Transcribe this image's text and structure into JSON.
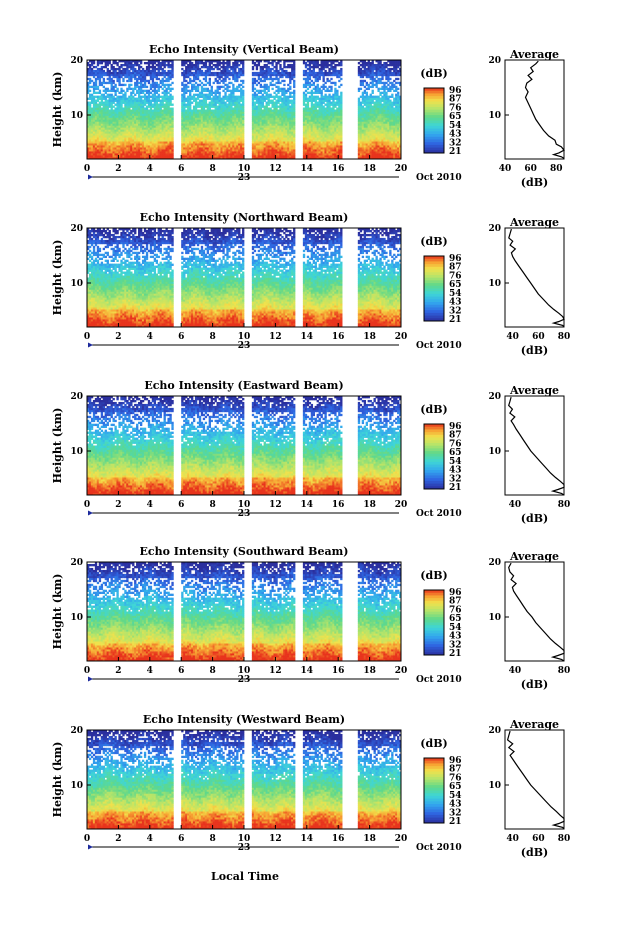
{
  "figure": {
    "xlabel": "Local Time",
    "date_label": "Oct 2010",
    "day_label": "23"
  },
  "chart_data": [
    {
      "type": "heatmap",
      "title": "Echo Intensity (Vertical Beam)",
      "ylabel": "Height (km)",
      "xlabel": "Local Time",
      "x_ticks": [
        "0",
        "2",
        "4",
        "6",
        "8",
        "10",
        "12",
        "14",
        "16",
        "18",
        "20"
      ],
      "y_ticks": [
        "10",
        "20"
      ],
      "xlim": [
        0,
        20
      ],
      "ylim": [
        2,
        20
      ],
      "colorbar": {
        "label": "(dB)",
        "ticks": [
          "96",
          "87",
          "76",
          "65",
          "54",
          "43",
          "32",
          "21"
        ],
        "range": [
          21,
          96
        ]
      },
      "data_gaps_hours": [
        [
          5.5,
          6.0
        ],
        [
          10.0,
          10.5
        ],
        [
          13.2,
          13.7
        ],
        [
          16.2,
          17.3
        ]
      ],
      "profile": {
        "title": "Average",
        "xlabel": "(dB)",
        "xlim": [
          40,
          86
        ],
        "x_ticks": [
          "40",
          "60",
          "80"
        ],
        "ylim": [
          2,
          20
        ],
        "points": [
          [
            66,
            19.8
          ],
          [
            64,
            19.3
          ],
          [
            60,
            18.6
          ],
          [
            62,
            17.9
          ],
          [
            58,
            17.2
          ],
          [
            61,
            16.5
          ],
          [
            57,
            15.8
          ],
          [
            56,
            15.0
          ],
          [
            58,
            14.2
          ],
          [
            56,
            13.2
          ],
          [
            58,
            12.2
          ],
          [
            60,
            11.2
          ],
          [
            62,
            10.2
          ],
          [
            64,
            9.2
          ],
          [
            67,
            8.2
          ],
          [
            70,
            7.2
          ],
          [
            74,
            6.2
          ],
          [
            79,
            5.4
          ],
          [
            80,
            4.7
          ],
          [
            84,
            4.2
          ],
          [
            86,
            3.6
          ],
          [
            82,
            3.1
          ],
          [
            78,
            2.8
          ],
          [
            84,
            2.4
          ],
          [
            86,
            2.1
          ]
        ]
      }
    },
    {
      "type": "heatmap",
      "title": "Echo Intensity (Northward Beam)",
      "ylabel": "Height (km)",
      "xlabel": "Local Time",
      "x_ticks": [
        "0",
        "2",
        "4",
        "6",
        "8",
        "10",
        "12",
        "14",
        "16",
        "18",
        "20"
      ],
      "y_ticks": [
        "10",
        "20"
      ],
      "xlim": [
        0,
        20
      ],
      "ylim": [
        2,
        20
      ],
      "colorbar": {
        "label": "(dB)",
        "ticks": [
          "96",
          "87",
          "76",
          "65",
          "54",
          "43",
          "32",
          "21"
        ],
        "range": [
          21,
          96
        ]
      },
      "data_gaps_hours": [
        [
          5.5,
          6.0
        ],
        [
          10.0,
          10.5
        ],
        [
          13.2,
          13.7
        ],
        [
          16.2,
          17.3
        ]
      ],
      "profile": {
        "title": "Average",
        "xlabel": "(dB)",
        "xlim": [
          34,
          80
        ],
        "x_ticks": [
          "40",
          "60",
          "80"
        ],
        "ylim": [
          2,
          20
        ],
        "points": [
          [
            39,
            19.8
          ],
          [
            38,
            19.0
          ],
          [
            37,
            18.2
          ],
          [
            40,
            17.6
          ],
          [
            38,
            16.9
          ],
          [
            42,
            16.2
          ],
          [
            39,
            15.5
          ],
          [
            40,
            14.8
          ],
          [
            42,
            14.0
          ],
          [
            45,
            13.0
          ],
          [
            48,
            12.0
          ],
          [
            51,
            11.0
          ],
          [
            54,
            10.0
          ],
          [
            57,
            9.0
          ],
          [
            60,
            8.0
          ],
          [
            64,
            7.0
          ],
          [
            68,
            6.0
          ],
          [
            72,
            5.2
          ],
          [
            76,
            4.5
          ],
          [
            79,
            3.9
          ],
          [
            80,
            3.4
          ],
          [
            76,
            3.0
          ],
          [
            72,
            2.7
          ],
          [
            79,
            2.3
          ],
          [
            80,
            2.0
          ]
        ]
      }
    },
    {
      "type": "heatmap",
      "title": "Echo Intensity (Eastward Beam)",
      "ylabel": "Height (km)",
      "xlabel": "Local Time",
      "x_ticks": [
        "0",
        "2",
        "4",
        "6",
        "8",
        "10",
        "12",
        "14",
        "16",
        "18",
        "20"
      ],
      "y_ticks": [
        "10",
        "20"
      ],
      "xlim": [
        0,
        20
      ],
      "ylim": [
        2,
        20
      ],
      "colorbar": {
        "label": "(dB)",
        "ticks": [
          "96",
          "87",
          "76",
          "65",
          "54",
          "43",
          "32",
          "21"
        ],
        "range": [
          21,
          96
        ]
      },
      "data_gaps_hours": [
        [
          5.5,
          6.0
        ],
        [
          10.0,
          10.5
        ],
        [
          13.2,
          13.7
        ],
        [
          16.2,
          17.3
        ]
      ],
      "profile": {
        "title": "Average",
        "xlabel": "(dB)",
        "xlim": [
          32,
          80
        ],
        "x_ticks": [
          "40",
          "80"
        ],
        "ylim": [
          2,
          20
        ],
        "points": [
          [
            37,
            19.8
          ],
          [
            36,
            19.0
          ],
          [
            35,
            18.3
          ],
          [
            38,
            17.6
          ],
          [
            36,
            16.9
          ],
          [
            40,
            16.2
          ],
          [
            37,
            15.5
          ],
          [
            39,
            14.8
          ],
          [
            41,
            14.0
          ],
          [
            44,
            13.0
          ],
          [
            47,
            12.0
          ],
          [
            50,
            11.0
          ],
          [
            53,
            10.0
          ],
          [
            57,
            9.0
          ],
          [
            61,
            8.0
          ],
          [
            65,
            7.0
          ],
          [
            69,
            6.0
          ],
          [
            73,
            5.2
          ],
          [
            77,
            4.5
          ],
          [
            80,
            3.9
          ],
          [
            80,
            3.4
          ],
          [
            75,
            3.0
          ],
          [
            71,
            2.7
          ],
          [
            78,
            2.3
          ],
          [
            80,
            2.0
          ]
        ]
      }
    },
    {
      "type": "heatmap",
      "title": "Echo Intensity (Southward Beam)",
      "ylabel": "Height (km)",
      "xlabel": "Local Time",
      "x_ticks": [
        "0",
        "2",
        "4",
        "6",
        "8",
        "10",
        "12",
        "14",
        "16",
        "18",
        "20"
      ],
      "y_ticks": [
        "10",
        "20"
      ],
      "xlim": [
        0,
        20
      ],
      "ylim": [
        2,
        20
      ],
      "colorbar": {
        "label": "(dB)",
        "ticks": [
          "96",
          "87",
          "76",
          "65",
          "54",
          "43",
          "32",
          "21"
        ],
        "range": [
          21,
          96
        ]
      },
      "data_gaps_hours": [
        [
          5.5,
          6.0
        ],
        [
          10.0,
          10.5
        ],
        [
          13.2,
          13.7
        ],
        [
          16.2,
          17.3
        ]
      ],
      "profile": {
        "title": "Average",
        "xlabel": "(dB)",
        "xlim": [
          32,
          80
        ],
        "x_ticks": [
          "40",
          "80"
        ],
        "ylim": [
          2,
          20
        ],
        "points": [
          [
            37,
            19.8
          ],
          [
            35,
            19.0
          ],
          [
            36,
            18.2
          ],
          [
            39,
            17.5
          ],
          [
            37,
            16.8
          ],
          [
            41,
            16.1
          ],
          [
            38,
            15.4
          ],
          [
            39,
            14.7
          ],
          [
            41,
            14.0
          ],
          [
            44,
            13.0
          ],
          [
            47,
            12.0
          ],
          [
            50,
            11.0
          ],
          [
            54,
            10.0
          ],
          [
            57,
            9.0
          ],
          [
            61,
            8.0
          ],
          [
            65,
            7.0
          ],
          [
            69,
            6.0
          ],
          [
            73,
            5.2
          ],
          [
            77,
            4.5
          ],
          [
            80,
            3.9
          ],
          [
            80,
            3.4
          ],
          [
            75,
            3.0
          ],
          [
            71,
            2.7
          ],
          [
            78,
            2.3
          ],
          [
            80,
            2.0
          ]
        ]
      }
    },
    {
      "type": "heatmap",
      "title": "Echo Intensity (Westward Beam)",
      "ylabel": "Height (km)",
      "xlabel": "Local Time",
      "x_ticks": [
        "0",
        "2",
        "4",
        "6",
        "8",
        "10",
        "12",
        "14",
        "16",
        "18",
        "20"
      ],
      "y_ticks": [
        "10",
        "20"
      ],
      "xlim": [
        0,
        20
      ],
      "ylim": [
        2,
        20
      ],
      "colorbar": {
        "label": "(dB)",
        "ticks": [
          "96",
          "87",
          "76",
          "65",
          "54",
          "43",
          "32",
          "21"
        ],
        "range": [
          21,
          96
        ]
      },
      "data_gaps_hours": [
        [
          5.5,
          6.0
        ],
        [
          10.0,
          10.5
        ],
        [
          13.2,
          13.7
        ],
        [
          16.2,
          17.3
        ]
      ],
      "profile": {
        "title": "Average",
        "xlabel": "(dB)",
        "xlim": [
          34,
          80
        ],
        "x_ticks": [
          "40",
          "60",
          "80"
        ],
        "ylim": [
          2,
          20
        ],
        "points": [
          [
            38,
            19.8
          ],
          [
            37,
            19.0
          ],
          [
            36,
            18.2
          ],
          [
            40,
            17.5
          ],
          [
            37,
            16.8
          ],
          [
            41,
            16.1
          ],
          [
            38,
            15.4
          ],
          [
            40,
            14.7
          ],
          [
            42,
            14.0
          ],
          [
            45,
            13.0
          ],
          [
            48,
            12.0
          ],
          [
            51,
            11.0
          ],
          [
            54,
            10.0
          ],
          [
            58,
            9.0
          ],
          [
            62,
            8.0
          ],
          [
            66,
            7.0
          ],
          [
            70,
            6.0
          ],
          [
            74,
            5.2
          ],
          [
            77,
            4.5
          ],
          [
            80,
            3.9
          ],
          [
            80,
            3.4
          ],
          [
            76,
            3.0
          ],
          [
            72,
            2.7
          ],
          [
            79,
            2.3
          ],
          [
            80,
            2.0
          ]
        ]
      }
    }
  ]
}
